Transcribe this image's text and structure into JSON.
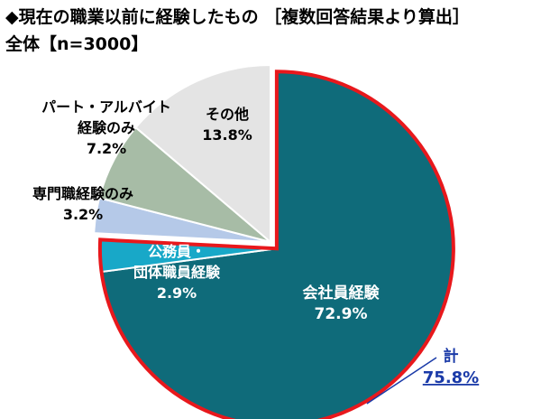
{
  "header": {
    "title": "◆現在の職業以前に経験したもの ［複数回答結果より算出］",
    "subtitle": "全体【n=3000】"
  },
  "chart_data": {
    "type": "pie",
    "slices": [
      {
        "label": "会社員経験",
        "value": 72.9,
        "display": "72.9%",
        "color": "#0f6b7a"
      },
      {
        "label": "公務員・\n団体職員経験",
        "value": 2.9,
        "display": "2.9%",
        "color": "#18a8c8"
      },
      {
        "label": "専門職経験のみ",
        "value": 3.2,
        "display": "3.2%",
        "color": "#b5c9e8"
      },
      {
        "label": "パート・アルバイト\n経験のみ",
        "value": 7.2,
        "display": "7.2%",
        "color": "#a7bca6"
      },
      {
        "label": "その他",
        "value": 13.8,
        "display": "13.8%",
        "color": "#e4e4e4"
      }
    ],
    "highlight": {
      "label": "計",
      "value": 75.8,
      "display": "75.8%",
      "color": "#e8181c"
    }
  }
}
